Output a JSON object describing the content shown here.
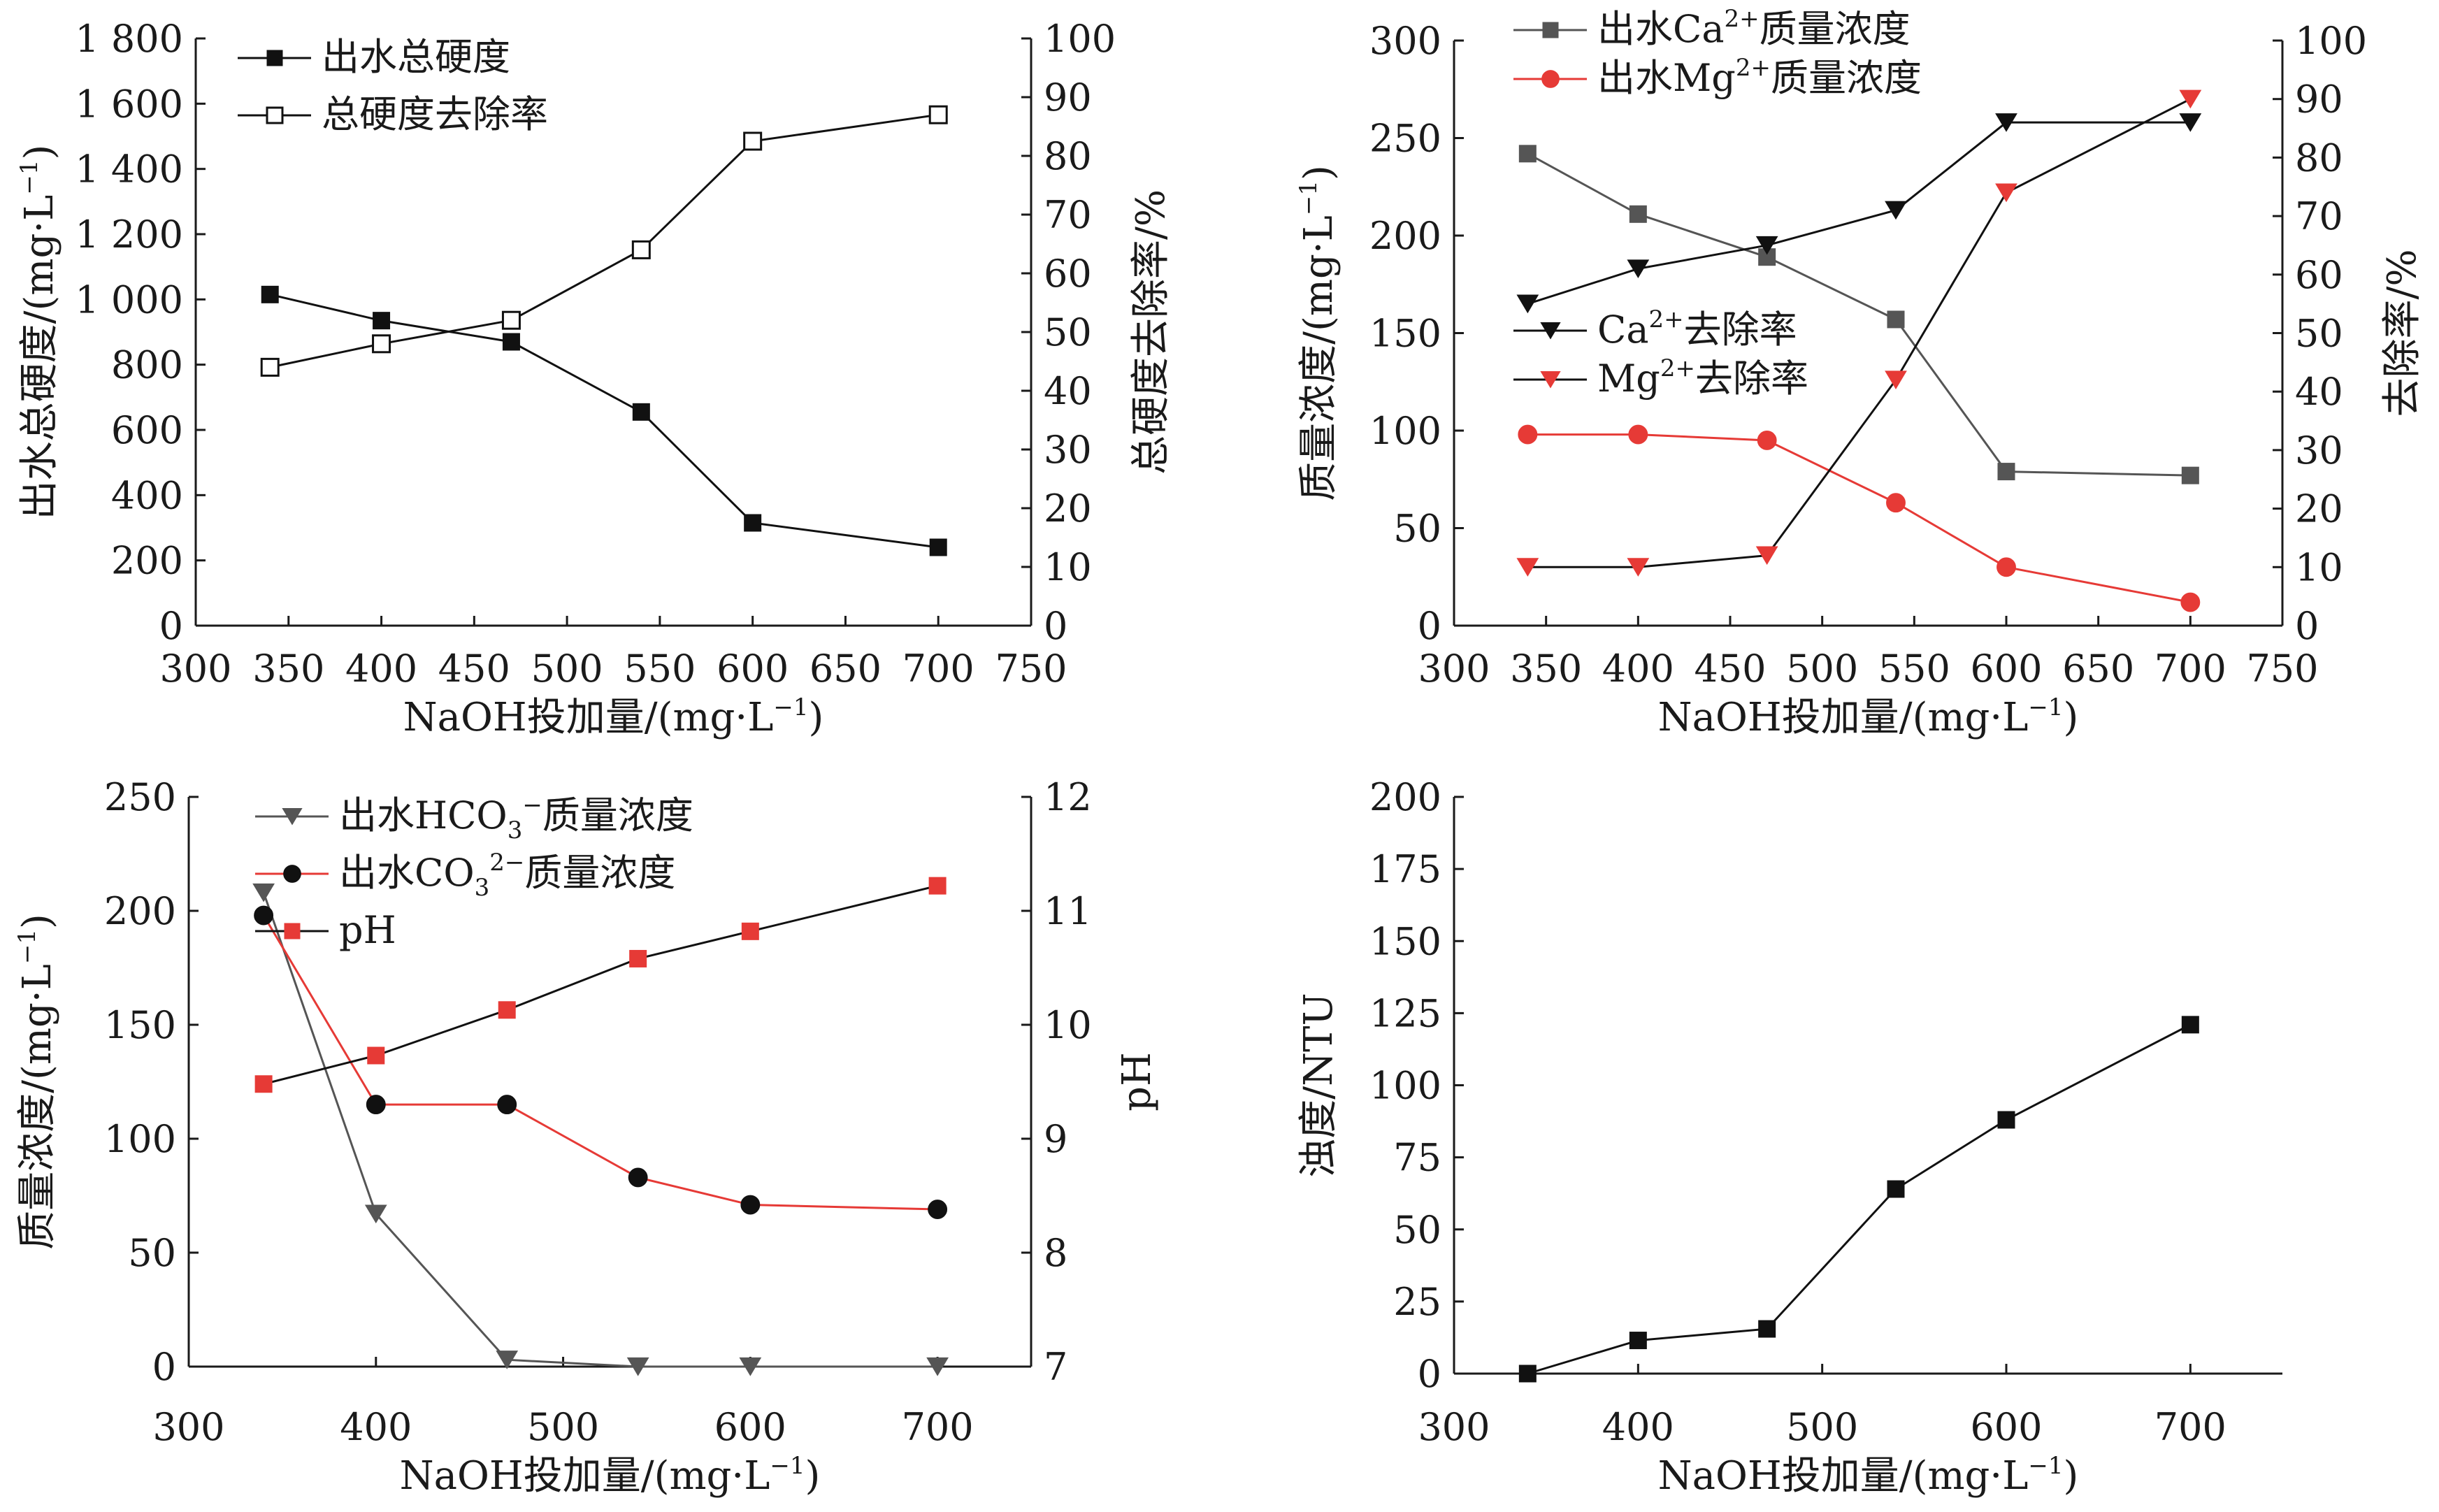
{
  "colors": {
    "black": "#111111",
    "gray": "#555555",
    "red": "#e63a36"
  },
  "panels": [
    {
      "id": "a",
      "x_ticks": [
        "300",
        "350",
        "400",
        "450",
        "500",
        "550",
        "600",
        "650",
        "700",
        "750"
      ],
      "y_left_ticks": [
        "0",
        "200",
        "400",
        "600",
        "800",
        "1 000",
        "1 200",
        "1 400",
        "1 600",
        "1 800"
      ],
      "y_right_ticks": [
        "0",
        "10",
        "20",
        "30",
        "40",
        "50",
        "60",
        "70",
        "80",
        "90",
        "100"
      ],
      "x_label": "NaOH投加量/(mg·L",
      "x_label_sup": "−1",
      "x_label_end": ")",
      "y_left_label": "出水总硬度/(mg·L",
      "y_left_label_sup": "−1",
      "y_left_label_end": ")",
      "y_right_label": "总硬度去除率/%",
      "legend": [
        {
          "prefix": "出水总硬度",
          "sup": "",
          "suffix": ""
        },
        {
          "prefix": "总硬度去除率",
          "sup": "",
          "suffix": ""
        }
      ]
    },
    {
      "id": "b",
      "x_ticks": [
        "300",
        "350",
        "400",
        "450",
        "500",
        "550",
        "600",
        "650",
        "700",
        "750"
      ],
      "y_left_ticks": [
        "0",
        "50",
        "100",
        "150",
        "200",
        "250",
        "300"
      ],
      "y_right_ticks": [
        "0",
        "10",
        "20",
        "30",
        "40",
        "50",
        "60",
        "70",
        "80",
        "90",
        "100"
      ],
      "x_label": "NaOH投加量/(mg·L",
      "x_label_sup": "−1",
      "x_label_end": ")",
      "y_left_label": "质量浓度/(mg·L",
      "y_left_label_sup": "−1",
      "y_left_label_end": ")",
      "y_right_label": "去除率/%",
      "legend": [
        {
          "prefix": "出水Ca",
          "sup": "2+",
          "suffix": "质量浓度"
        },
        {
          "prefix": "出水Mg",
          "sup": "2+",
          "suffix": "质量浓度"
        },
        {
          "prefix": "Ca",
          "sup": "2+",
          "suffix": "去除率"
        },
        {
          "prefix": "Mg",
          "sup": "2+",
          "suffix": "去除率"
        }
      ]
    },
    {
      "id": "c",
      "x_ticks": [
        "300",
        "400",
        "500",
        "600",
        "700"
      ],
      "y_left_ticks": [
        "0",
        "50",
        "100",
        "150",
        "200",
        "250"
      ],
      "y_right_ticks": [
        "7",
        "8",
        "9",
        "10",
        "11",
        "12"
      ],
      "x_label": "NaOH投加量/(mg·L",
      "x_label_sup": "−1",
      "x_label_end": ")",
      "y_left_label": "质量浓度/(mg·L",
      "y_left_label_sup": "−1",
      "y_left_label_end": ")",
      "y_right_label": "pH",
      "legend": [
        {
          "prefix": "出水HCO",
          "sub": "3",
          "sup": "−",
          "suffix": "质量浓度"
        },
        {
          "prefix": "出水CO",
          "sub": "3",
          "sup": "2−",
          "suffix": "质量浓度"
        },
        {
          "prefix": "pH",
          "sup": "",
          "suffix": ""
        }
      ]
    },
    {
      "id": "d",
      "x_ticks": [
        "300",
        "400",
        "500",
        "600",
        "700"
      ],
      "y_left_ticks": [
        "0",
        "25",
        "50",
        "75",
        "100",
        "125",
        "150",
        "175",
        "200"
      ],
      "x_label": "NaOH投加量/(mg·L",
      "x_label_sup": "−1",
      "x_label_end": ")",
      "y_left_label": "浊度/NTU",
      "y_left_label_sup": "",
      "y_left_label_end": ""
    }
  ],
  "chart_data": [
    {
      "type": "line",
      "x": [
        340,
        400,
        470,
        540,
        600,
        700
      ],
      "xlabel": "NaOH投加量/(mg·L−1)",
      "xlim": [
        300,
        750
      ],
      "ylabel": "出水总硬度/(mg·L−1)",
      "ylim": [
        0,
        1800
      ],
      "y2label": "总硬度去除率/%",
      "y2lim": [
        0,
        100
      ],
      "legend": "top-left",
      "series": [
        {
          "name": "出水总硬度",
          "axis": "left",
          "marker": "filled-square",
          "color": "#111111",
          "values": [
            1015,
            935,
            870,
            655,
            315,
            240
          ]
        },
        {
          "name": "总硬度去除率",
          "axis": "right",
          "marker": "open-square",
          "color": "#111111",
          "values": [
            44,
            48,
            52,
            64,
            82.5,
            87
          ]
        }
      ]
    },
    {
      "type": "line",
      "x": [
        340,
        400,
        470,
        540,
        600,
        700
      ],
      "xlabel": "NaOH投加量/(mg·L−1)",
      "xlim": [
        300,
        750
      ],
      "ylabel": "质量浓度/(mg·L−1)",
      "ylim": [
        0,
        300
      ],
      "y2label": "去除率/%",
      "y2lim": [
        0,
        100
      ],
      "legend": "top-left",
      "series": [
        {
          "name": "出水Ca2+质量浓度",
          "axis": "left",
          "marker": "filled-square",
          "color": "#555555",
          "values": [
            242,
            211,
            189,
            157,
            79,
            77
          ]
        },
        {
          "name": "出水Mg2+质量浓度",
          "axis": "left",
          "marker": "filled-circle",
          "color": "#e63a36",
          "values": [
            98,
            98,
            95,
            63,
            30,
            12
          ]
        },
        {
          "name": "Ca2+去除率",
          "axis": "right",
          "marker": "down-triangle",
          "color": "#111111",
          "values": [
            55,
            61,
            65,
            71,
            86,
            86
          ],
          "line_color": "#111111"
        },
        {
          "name": "Mg2+去除率",
          "axis": "right",
          "marker": "down-triangle",
          "color": "#e63a36",
          "values": [
            10,
            10,
            12,
            42,
            74,
            90
          ],
          "line_color": "#111111"
        }
      ]
    },
    {
      "type": "line",
      "x": [
        340,
        400,
        470,
        540,
        600,
        700
      ],
      "xlabel": "NaOH投加量/(mg·L−1)",
      "xlim": [
        300,
        750
      ],
      "ylabel": "质量浓度/(mg·L−1)",
      "ylim": [
        0,
        250
      ],
      "y2label": "pH",
      "y2lim": [
        7,
        12
      ],
      "legend": "top-left",
      "series": [
        {
          "name": "出水HCO3−质量浓度",
          "axis": "left",
          "marker": "down-triangle",
          "color": "#555555",
          "values": [
            208,
            67,
            3,
            0,
            0,
            0
          ]
        },
        {
          "name": "出水CO32−质量浓度",
          "axis": "left",
          "marker": "filled-circle",
          "color": "#e63a36",
          "values": [
            198,
            115,
            115,
            83,
            71,
            69
          ],
          "marker_color": "#111111"
        },
        {
          "name": "pH",
          "axis": "right",
          "marker": "filled-square",
          "color": "#111111",
          "values": [
            9.48,
            9.73,
            10.13,
            10.58,
            10.82,
            11.22
          ],
          "marker_color": "#e63a36"
        }
      ]
    },
    {
      "type": "line",
      "x": [
        340,
        400,
        470,
        540,
        600,
        700
      ],
      "xlabel": "NaOH投加量/(mg·L−1)",
      "xlim": [
        300,
        750
      ],
      "ylabel": "浊度/NTU",
      "ylim": [
        0,
        200
      ],
      "series": [
        {
          "name": "",
          "axis": "left",
          "marker": "filled-square",
          "color": "#111111",
          "values": [
            0,
            11.5,
            15.5,
            64,
            88,
            121
          ]
        }
      ]
    }
  ]
}
